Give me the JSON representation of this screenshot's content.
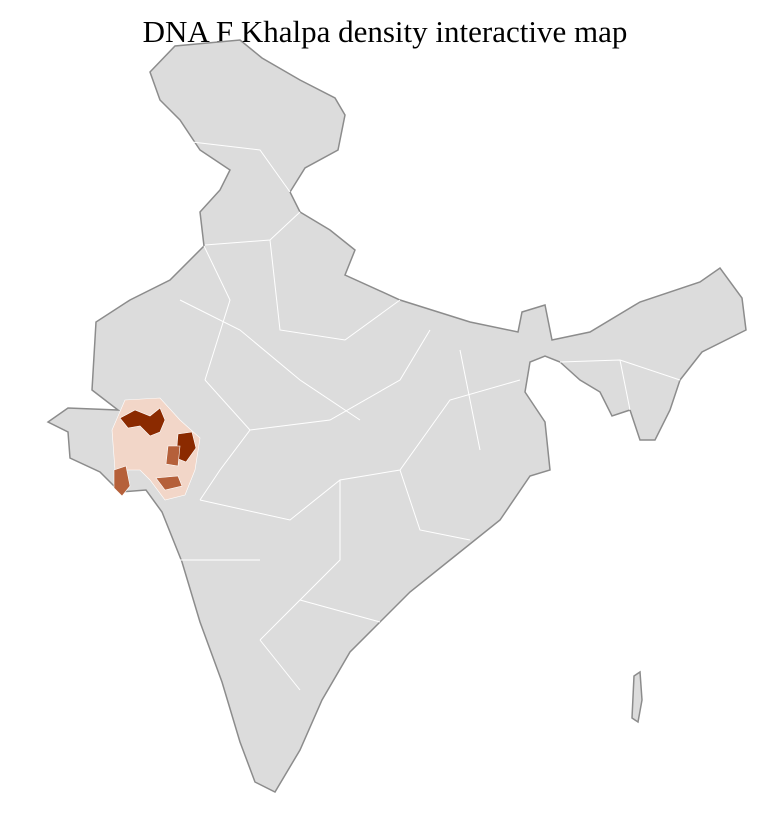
{
  "title": "DNA F Khalpa density interactive map",
  "colors": {
    "land": "#dcdcdc",
    "state_border": "#8c8c8c",
    "district_border": "#ffffff",
    "density_low": "#f2d6c8",
    "density_mid": "#b5603a",
    "density_high": "#8b2a00"
  }
}
